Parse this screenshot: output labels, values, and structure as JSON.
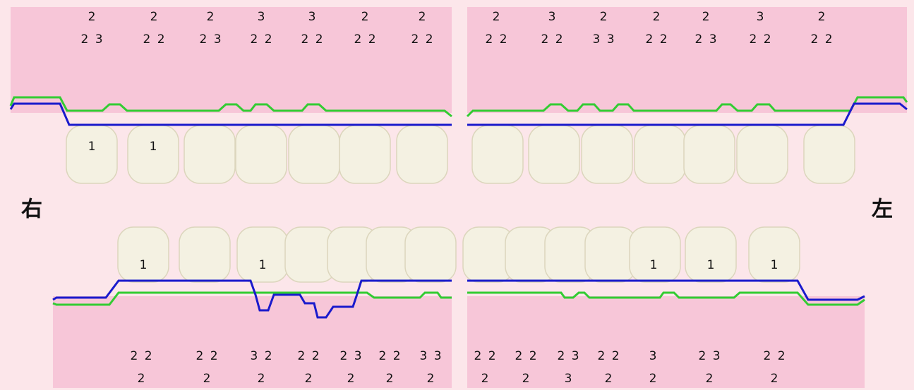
{
  "side_labels": {
    "screen_left": "右",
    "screen_right": "左"
  },
  "upper_left_quadrant": [
    {
      "top": "2",
      "bottom": "2 3"
    },
    {
      "top": "2",
      "bottom": "2 2"
    },
    {
      "top": "2",
      "bottom": "2 3"
    },
    {
      "top": "3",
      "bottom": "2 2"
    },
    {
      "top": "3",
      "bottom": "2 2"
    },
    {
      "top": "2",
      "bottom": "2 2"
    },
    {
      "top": "2",
      "bottom": "2 2"
    }
  ],
  "upper_right_quadrant": [
    {
      "top": "2",
      "bottom": "2 2"
    },
    {
      "top": "3",
      "bottom": "2 2"
    },
    {
      "top": "2",
      "bottom": "3 3"
    },
    {
      "top": "2",
      "bottom": "2 2"
    },
    {
      "top": "2",
      "bottom": "2 3"
    },
    {
      "top": "3",
      "bottom": "2 2"
    },
    {
      "top": "2",
      "bottom": "2 2"
    }
  ],
  "lower_left_quadrant": [
    {
      "top": "2 2",
      "bottom": "2"
    },
    {
      "top": "2 2",
      "bottom": "2"
    },
    {
      "top": "3 2",
      "bottom": "2"
    },
    {
      "top": "2 2",
      "bottom": "2"
    },
    {
      "top": "2 3",
      "bottom": "2"
    },
    {
      "top": "2 2",
      "bottom": "2"
    },
    {
      "top": "3 3",
      "bottom": "2"
    }
  ],
  "lower_right_quadrant": [
    {
      "top": "2 2",
      "bottom": "2"
    },
    {
      "top": "2 2",
      "bottom": "2"
    },
    {
      "top": "2 3",
      "bottom": "3"
    },
    {
      "top": "2 2",
      "bottom": "2"
    },
    {
      "top": "3",
      "bottom": "2"
    },
    {
      "top": "2 3",
      "bottom": "2"
    },
    {
      "top": "2 2",
      "bottom": "2"
    }
  ],
  "tooth_labels": {
    "upper_left": [
      "1",
      "1"
    ],
    "lower_left": [
      "1",
      "1"
    ],
    "lower_right": [
      "1",
      "1",
      "1"
    ]
  }
}
